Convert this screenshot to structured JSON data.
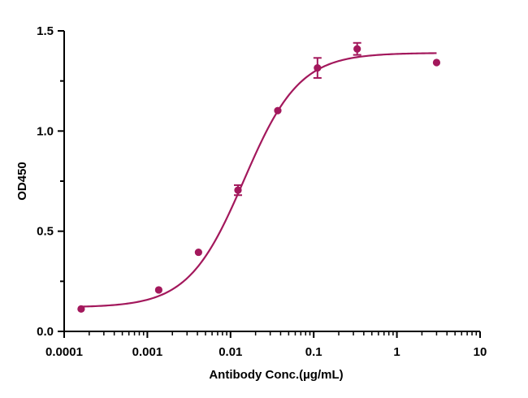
{
  "chart_data": {
    "type": "scatter",
    "title": "",
    "xlabel": "Antibody Conc.(µg/mL)",
    "ylabel": "OD450",
    "xscale": "log",
    "xlim": [
      0.0001,
      10
    ],
    "ylim": [
      0,
      1.5
    ],
    "grid": false,
    "legend": "none",
    "xticks": [
      {
        "value": 0.0001,
        "label": "0.0001"
      },
      {
        "value": 0.001,
        "label": "0.001"
      },
      {
        "value": 0.01,
        "label": "0.01"
      },
      {
        "value": 0.1,
        "label": "0.1"
      },
      {
        "value": 1,
        "label": "1"
      },
      {
        "value": 10,
        "label": "10"
      }
    ],
    "yticks": [
      {
        "value": 0,
        "label": "0.0"
      },
      {
        "value": 0.5,
        "label": "0.5"
      },
      {
        "value": 1.0,
        "label": "1.0"
      },
      {
        "value": 1.5,
        "label": "1.5"
      }
    ],
    "color": "#a3185c",
    "series": [
      {
        "points": [
          {
            "x": 0.00016,
            "y": 0.112,
            "err": 0.008
          },
          {
            "x": 0.00137,
            "y": 0.207,
            "err": 0.007
          },
          {
            "x": 0.00412,
            "y": 0.395,
            "err": 0.008
          },
          {
            "x": 0.0123,
            "y": 0.705,
            "err": 0.025
          },
          {
            "x": 0.037,
            "y": 1.102,
            "err": 0.007
          },
          {
            "x": 0.111,
            "y": 1.315,
            "err": 0.05
          },
          {
            "x": 0.333,
            "y": 1.41,
            "err": 0.03
          },
          {
            "x": 3.0,
            "y": 1.342,
            "err": 0.007
          }
        ],
        "fit": {
          "model": "4PL",
          "bottom": 0.12,
          "top": 1.39,
          "ec50": 0.0145,
          "hill": 1.3
        }
      }
    ]
  }
}
